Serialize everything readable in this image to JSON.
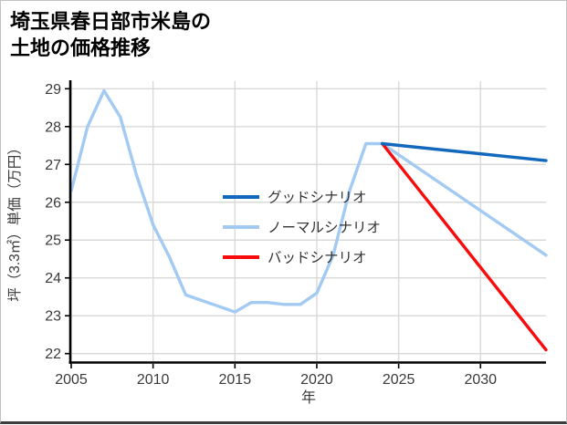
{
  "header": {
    "title_line1": "埼玉県春日部市米島の",
    "title_line2": "土地の価格推移"
  },
  "chart_data": {
    "type": "line",
    "title": "埼玉県春日部市米島の土地の価格推移",
    "xlabel": "年",
    "ylabel": "坪（3.3㎡）単価（万円）",
    "xlim": [
      2005,
      2034
    ],
    "ylim": [
      21.8,
      29.2
    ],
    "xticks": [
      2005,
      2010,
      2015,
      2020,
      2025,
      2030
    ],
    "yticks": [
      22,
      23,
      24,
      25,
      26,
      27,
      28,
      29
    ],
    "grid": true,
    "legend": {
      "position": "inside-center-left",
      "has_frame": false
    },
    "colors": {
      "good": "#1168bd",
      "normal": "#a3caf3",
      "bad": "#f90b0b",
      "grid": "#d9d9d9",
      "axis": "#000000",
      "tick_label": "#3a3a3a",
      "legend_text": "#333333"
    },
    "series": [
      {
        "key": "good",
        "name": "グッドシナリオ",
        "color": "#1168bd",
        "points": [
          [
            2024,
            27.55
          ],
          [
            2034,
            27.1
          ]
        ]
      },
      {
        "key": "normal",
        "name": "ノーマルシナリオ",
        "color": "#a3caf3",
        "points": [
          [
            2005,
            26.3
          ],
          [
            2006,
            28.0
          ],
          [
            2007,
            28.95
          ],
          [
            2008,
            28.25
          ],
          [
            2009,
            26.7
          ],
          [
            2010,
            25.4
          ],
          [
            2011,
            24.55
          ],
          [
            2012,
            23.55
          ],
          [
            2013,
            23.4
          ],
          [
            2014,
            23.25
          ],
          [
            2015,
            23.1
          ],
          [
            2016,
            23.35
          ],
          [
            2017,
            23.35
          ],
          [
            2018,
            23.3
          ],
          [
            2019,
            23.3
          ],
          [
            2020,
            23.6
          ],
          [
            2021,
            24.6
          ],
          [
            2022,
            26.3
          ],
          [
            2023,
            27.55
          ],
          [
            2024,
            27.55
          ],
          [
            2034,
            24.6
          ]
        ]
      },
      {
        "key": "bad",
        "name": "バッドシナリオ",
        "color": "#f90b0b",
        "points": [
          [
            2024,
            27.55
          ],
          [
            2034,
            22.1
          ]
        ]
      }
    ]
  }
}
